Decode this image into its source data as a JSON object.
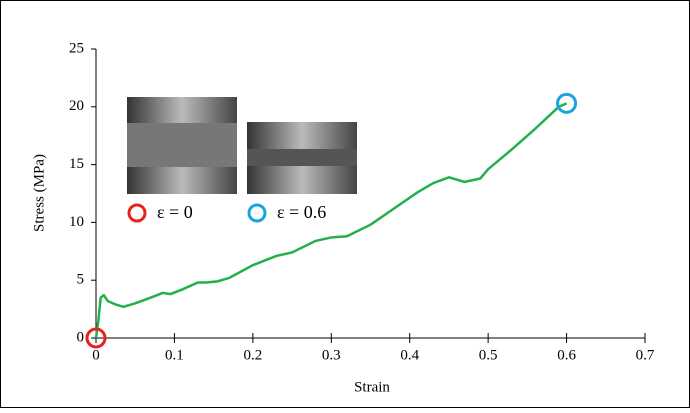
{
  "chart_data": {
    "type": "line",
    "x_label": "Strain",
    "y_label": "Stress (MPa)",
    "x": [
      0,
      0.003,
      0.006,
      0.01,
      0.015,
      0.025,
      0.035,
      0.05,
      0.07,
      0.085,
      0.095,
      0.11,
      0.13,
      0.14,
      0.155,
      0.17,
      0.2,
      0.23,
      0.25,
      0.28,
      0.3,
      0.32,
      0.35,
      0.38,
      0.41,
      0.43,
      0.45,
      0.47,
      0.49,
      0.5,
      0.53,
      0.56,
      0.59,
      0.6
    ],
    "series": [
      {
        "color": "#22b04b",
        "values": [
          0,
          1.5,
          3.5,
          3.7,
          3.2,
          2.9,
          2.7,
          3.0,
          3.5,
          3.9,
          3.8,
          4.2,
          4.8,
          4.8,
          4.9,
          5.2,
          6.3,
          7.1,
          7.4,
          8.4,
          8.7,
          8.8,
          9.8,
          11.2,
          12.6,
          13.4,
          13.9,
          13.5,
          13.8,
          14.6,
          16.3,
          18.1,
          20.0,
          20.3
        ]
      }
    ],
    "xlim": [
      0,
      0.7
    ],
    "xticks": [
      0,
      0.1,
      0.2,
      0.3,
      0.4,
      0.5,
      0.6,
      0.7
    ],
    "ylim": [
      0,
      25
    ],
    "yticks": [
      0,
      5,
      10,
      15,
      20,
      25
    ],
    "annotations": [
      {
        "text": "ε = 0",
        "color": "#e8211b"
      },
      {
        "text": "ε = 0.6",
        "color": "#1aa3dd"
      }
    ]
  }
}
